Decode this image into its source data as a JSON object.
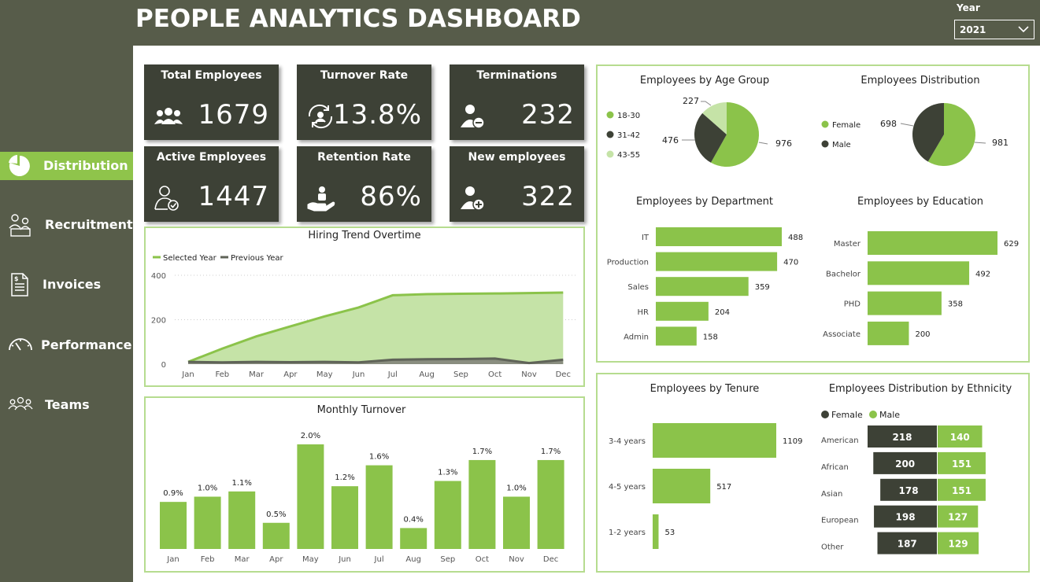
{
  "header": {
    "title": "PEOPLE ANALYTICS DASHBOARD",
    "year_label": "Year",
    "year_value": "2021"
  },
  "sidebar": {
    "items": [
      {
        "label": "Distribution",
        "icon": "pie-chart-icon",
        "active": true
      },
      {
        "label": "Recruitment",
        "icon": "recruitment-icon",
        "active": false
      },
      {
        "label": "Invoices",
        "icon": "invoice-icon",
        "active": false
      },
      {
        "label": "Performance",
        "icon": "speedometer-icon",
        "active": false
      },
      {
        "label": "Teams",
        "icon": "team-icon",
        "active": false
      }
    ]
  },
  "kpis": [
    {
      "title": "Total Employees",
      "value": "1679",
      "icon": "group-icon"
    },
    {
      "title": "Turnover Rate",
      "value": "13.8%",
      "icon": "turnover-icon"
    },
    {
      "title": "Terminations",
      "value": "232",
      "icon": "user-minus-icon"
    },
    {
      "title": "Active Employees",
      "value": "1447",
      "icon": "user-check-icon"
    },
    {
      "title": "Retention Rate",
      "value": "86%",
      "icon": "retention-icon"
    },
    {
      "title": "New employees",
      "value": "322",
      "icon": "user-plus-icon"
    }
  ],
  "colors": {
    "green": "#8bc34a",
    "light_green": "#c5e3a7",
    "dark": "#3d4136",
    "line_dark": "#5f6358",
    "sidebar": "#575c4a",
    "panel_border": "#b6dc8f"
  },
  "chart_data": [
    {
      "id": "hiring",
      "type": "area",
      "title": "Hiring Trend Overtime",
      "categories": [
        "Jan",
        "Feb",
        "Mar",
        "Apr",
        "May",
        "Jun",
        "Jul",
        "Aug",
        "Sep",
        "Oct",
        "Nov",
        "Dec"
      ],
      "series": [
        {
          "name": "Selected Year",
          "values": [
            10,
            70,
            125,
            170,
            215,
            255,
            310,
            315,
            317,
            318,
            320,
            322
          ]
        },
        {
          "name": "Previous Year",
          "values": [
            10,
            8,
            10,
            9,
            10,
            8,
            20,
            22,
            23,
            25,
            5,
            20
          ]
        }
      ],
      "yticks": [
        "0",
        "200",
        "400"
      ],
      "ylim": [
        0,
        420
      ],
      "legend": "top-left"
    },
    {
      "id": "turnover",
      "type": "bar",
      "title": "Monthly Turnover",
      "categories": [
        "Jan",
        "Feb",
        "Mar",
        "Apr",
        "May",
        "Jun",
        "Jul",
        "Aug",
        "Sep",
        "Oct",
        "Nov",
        "Dec"
      ],
      "values": [
        0.9,
        1.0,
        1.1,
        0.5,
        2.0,
        1.2,
        1.6,
        0.4,
        1.3,
        1.7,
        1.0,
        1.7
      ],
      "labels": [
        "0.9%",
        "1.0%",
        "1.1%",
        "0.5%",
        "2.0%",
        "1.2%",
        "1.6%",
        "0.4%",
        "1.3%",
        "1.7%",
        "1.0%",
        "1.7%"
      ]
    },
    {
      "id": "age",
      "type": "pie",
      "title": "Employees by Age Group",
      "categories": [
        "18-30",
        "31-42",
        "43-55"
      ],
      "values": [
        976,
        476,
        227
      ],
      "colors": [
        "#8bc34a",
        "#3d4136",
        "#c5e3a7"
      ],
      "legend": "left"
    },
    {
      "id": "gender",
      "type": "pie",
      "title": "Employees Distribution",
      "categories": [
        "Female",
        "Male"
      ],
      "values": [
        981,
        698
      ],
      "colors": [
        "#8bc34a",
        "#3d4136"
      ],
      "legend": "left"
    },
    {
      "id": "department",
      "type": "bar",
      "orientation": "horizontal",
      "title": "Employees by Department",
      "categories": [
        "IT",
        "Production",
        "Sales",
        "HR",
        "Admin"
      ],
      "values": [
        488,
        470,
        359,
        204,
        158
      ]
    },
    {
      "id": "education",
      "type": "bar",
      "orientation": "horizontal",
      "title": "Employees by Education",
      "categories": [
        "Master",
        "Bachelor",
        "PHD",
        "Associate"
      ],
      "values": [
        629,
        492,
        358,
        200
      ]
    },
    {
      "id": "tenure",
      "type": "bar",
      "orientation": "horizontal",
      "title": "Employees by Tenure",
      "categories": [
        "3-4 years",
        "4-5 years",
        "1-2 years"
      ],
      "values": [
        1109,
        517,
        53
      ]
    },
    {
      "id": "ethnicity",
      "type": "bar",
      "orientation": "diverging",
      "title": "Employees Distribution by Ethnicity",
      "categories": [
        "American",
        "African",
        "Asian",
        "European",
        "Other"
      ],
      "series": [
        {
          "name": "Female",
          "values": [
            218,
            200,
            178,
            198,
            187
          ]
        },
        {
          "name": "Male",
          "values": [
            140,
            151,
            151,
            127,
            129
          ]
        }
      ],
      "legend": "top-left"
    }
  ]
}
